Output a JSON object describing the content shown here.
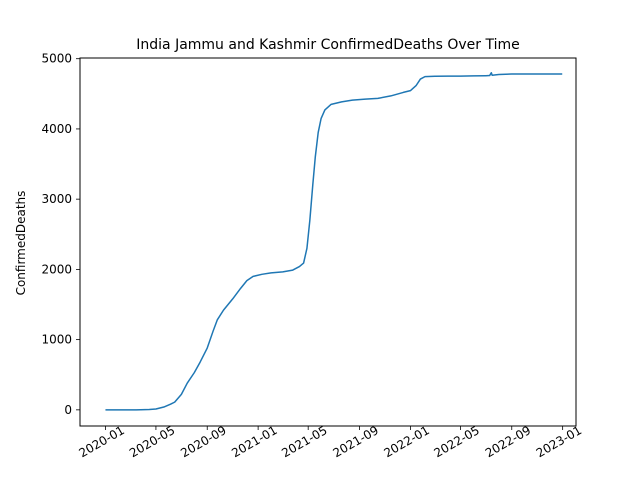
{
  "chart_data": {
    "type": "line",
    "title": "India Jammu and Kashmir ConfirmedDeaths Over Time",
    "xlabel": "",
    "ylabel": "ConfirmedDeaths",
    "xlim": [
      "2019-11-01",
      "2023-02-02"
    ],
    "ylim": [
      -230,
      5010
    ],
    "grid": false,
    "x_ticks": [
      "2020-01",
      "2020-05",
      "2020-09",
      "2021-01",
      "2021-05",
      "2021-09",
      "2022-01",
      "2022-05",
      "2022-09",
      "2023-01"
    ],
    "y_ticks": [
      0,
      1000,
      2000,
      3000,
      4000,
      5000
    ],
    "series": [
      {
        "color": "#1f77b4",
        "points": [
          [
            "2020-01-01",
            0
          ],
          [
            "2020-03-15",
            0
          ],
          [
            "2020-04-15",
            5
          ],
          [
            "2020-05-01",
            12
          ],
          [
            "2020-05-20",
            40
          ],
          [
            "2020-06-05",
            80
          ],
          [
            "2020-06-15",
            110
          ],
          [
            "2020-07-01",
            220
          ],
          [
            "2020-07-15",
            380
          ],
          [
            "2020-08-01",
            530
          ],
          [
            "2020-08-15",
            680
          ],
          [
            "2020-09-01",
            880
          ],
          [
            "2020-09-15",
            1120
          ],
          [
            "2020-09-25",
            1280
          ],
          [
            "2020-10-10",
            1420
          ],
          [
            "2020-11-01",
            1580
          ],
          [
            "2020-11-20",
            1730
          ],
          [
            "2020-12-05",
            1840
          ],
          [
            "2020-12-20",
            1900
          ],
          [
            "2021-01-10",
            1930
          ],
          [
            "2021-02-01",
            1950
          ],
          [
            "2021-03-01",
            1965
          ],
          [
            "2021-03-25",
            1990
          ],
          [
            "2021-04-10",
            2040
          ],
          [
            "2021-04-20",
            2090
          ],
          [
            "2021-04-28",
            2300
          ],
          [
            "2021-05-05",
            2700
          ],
          [
            "2021-05-12",
            3200
          ],
          [
            "2021-05-18",
            3600
          ],
          [
            "2021-05-25",
            3950
          ],
          [
            "2021-06-01",
            4150
          ],
          [
            "2021-06-10",
            4270
          ],
          [
            "2021-06-25",
            4350
          ],
          [
            "2021-07-20",
            4385
          ],
          [
            "2021-08-15",
            4410
          ],
          [
            "2021-09-15",
            4425
          ],
          [
            "2021-10-15",
            4435
          ],
          [
            "2021-11-15",
            4470
          ],
          [
            "2021-12-15",
            4520
          ],
          [
            "2022-01-01",
            4545
          ],
          [
            "2022-01-15",
            4620
          ],
          [
            "2022-01-25",
            4710
          ],
          [
            "2022-02-05",
            4745
          ],
          [
            "2022-03-01",
            4750
          ],
          [
            "2022-04-01",
            4752
          ],
          [
            "2022-05-01",
            4752
          ],
          [
            "2022-06-01",
            4755
          ],
          [
            "2022-07-01",
            4758
          ],
          [
            "2022-07-10",
            4760
          ],
          [
            "2022-07-14",
            4800
          ],
          [
            "2022-07-16",
            4765
          ],
          [
            "2022-08-01",
            4775
          ],
          [
            "2022-09-01",
            4782
          ],
          [
            "2022-11-01",
            4783
          ],
          [
            "2022-12-31",
            4783
          ]
        ]
      }
    ]
  }
}
